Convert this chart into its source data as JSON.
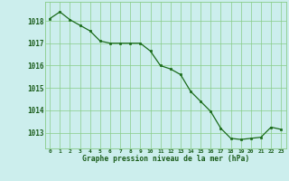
{
  "x": [
    0,
    1,
    2,
    3,
    4,
    5,
    6,
    7,
    8,
    9,
    10,
    11,
    12,
    13,
    14,
    15,
    16,
    17,
    18,
    19,
    20,
    21,
    22,
    23
  ],
  "y": [
    1018.1,
    1018.4,
    1018.05,
    1017.8,
    1017.55,
    1017.1,
    1017.0,
    1017.0,
    1017.0,
    1017.0,
    1016.65,
    1016.0,
    1015.85,
    1015.6,
    1014.85,
    1014.4,
    1013.95,
    1013.2,
    1012.75,
    1012.7,
    1012.75,
    1012.8,
    1013.25,
    1013.15
  ],
  "line_color": "#1a6b1a",
  "marker_color": "#1a6b1a",
  "bg_color": "#cceeed",
  "grid_color": "#88cc88",
  "ylabel_ticks": [
    1013,
    1014,
    1015,
    1016,
    1017,
    1018
  ],
  "xlabel": "Graphe pression niveau de la mer (hPa)",
  "xlabel_color": "#1a5c1a",
  "ylim": [
    1012.3,
    1018.85
  ],
  "xlim": [
    -0.5,
    23.5
  ]
}
